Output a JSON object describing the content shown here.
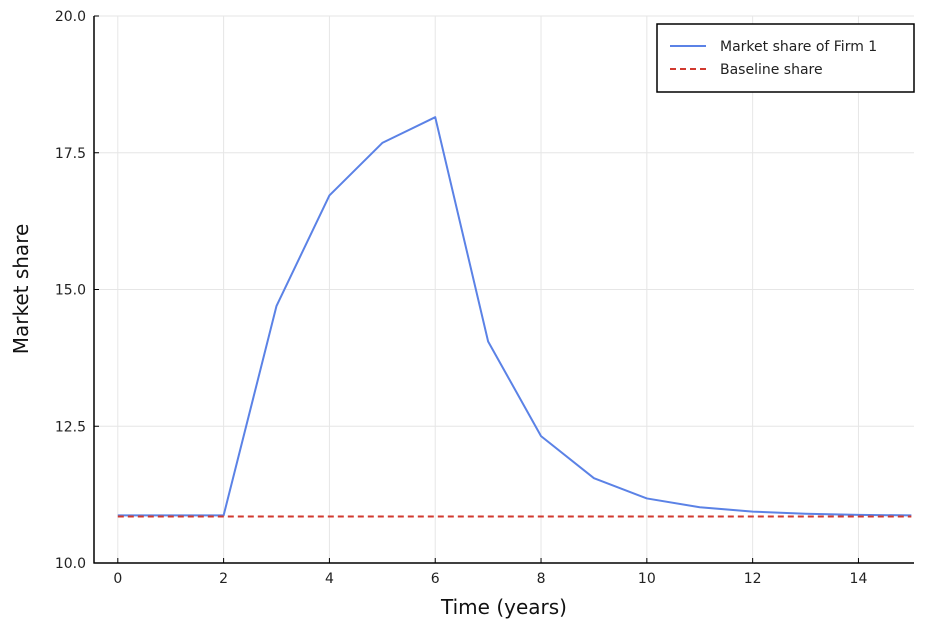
{
  "chart_data": {
    "type": "line",
    "title": "",
    "xlabel": "Time (years)",
    "ylabel": "Market share",
    "xlim": [
      -0.45,
      15.05
    ],
    "ylim": [
      10.0,
      20.0
    ],
    "xticks": [
      0,
      2,
      4,
      6,
      8,
      10,
      12,
      14
    ],
    "xtick_labels": [
      "0",
      "2",
      "4",
      "6",
      "8",
      "10",
      "12",
      "14"
    ],
    "yticks": [
      10.0,
      12.5,
      15.0,
      17.5,
      20.0
    ],
    "ytick_labels": [
      "10.0",
      "12.5",
      "15.0",
      "17.5",
      "20.0"
    ],
    "grid": true,
    "legend": "top-right",
    "series": [
      {
        "name": "Market share of Firm 1",
        "color": "#5b82e6",
        "style": "solid",
        "x": [
          0,
          1,
          2,
          3,
          4,
          5,
          6,
          7,
          8,
          9,
          10,
          11,
          12,
          13,
          14,
          15
        ],
        "y": [
          10.87,
          10.87,
          10.87,
          14.7,
          16.72,
          17.68,
          18.15,
          14.05,
          12.32,
          11.55,
          11.18,
          11.02,
          10.94,
          10.9,
          10.88,
          10.87
        ]
      },
      {
        "name": "Baseline share",
        "color": "#d13a2f",
        "style": "dashed",
        "x": [
          0,
          15
        ],
        "y": [
          10.85,
          10.85
        ]
      }
    ]
  }
}
